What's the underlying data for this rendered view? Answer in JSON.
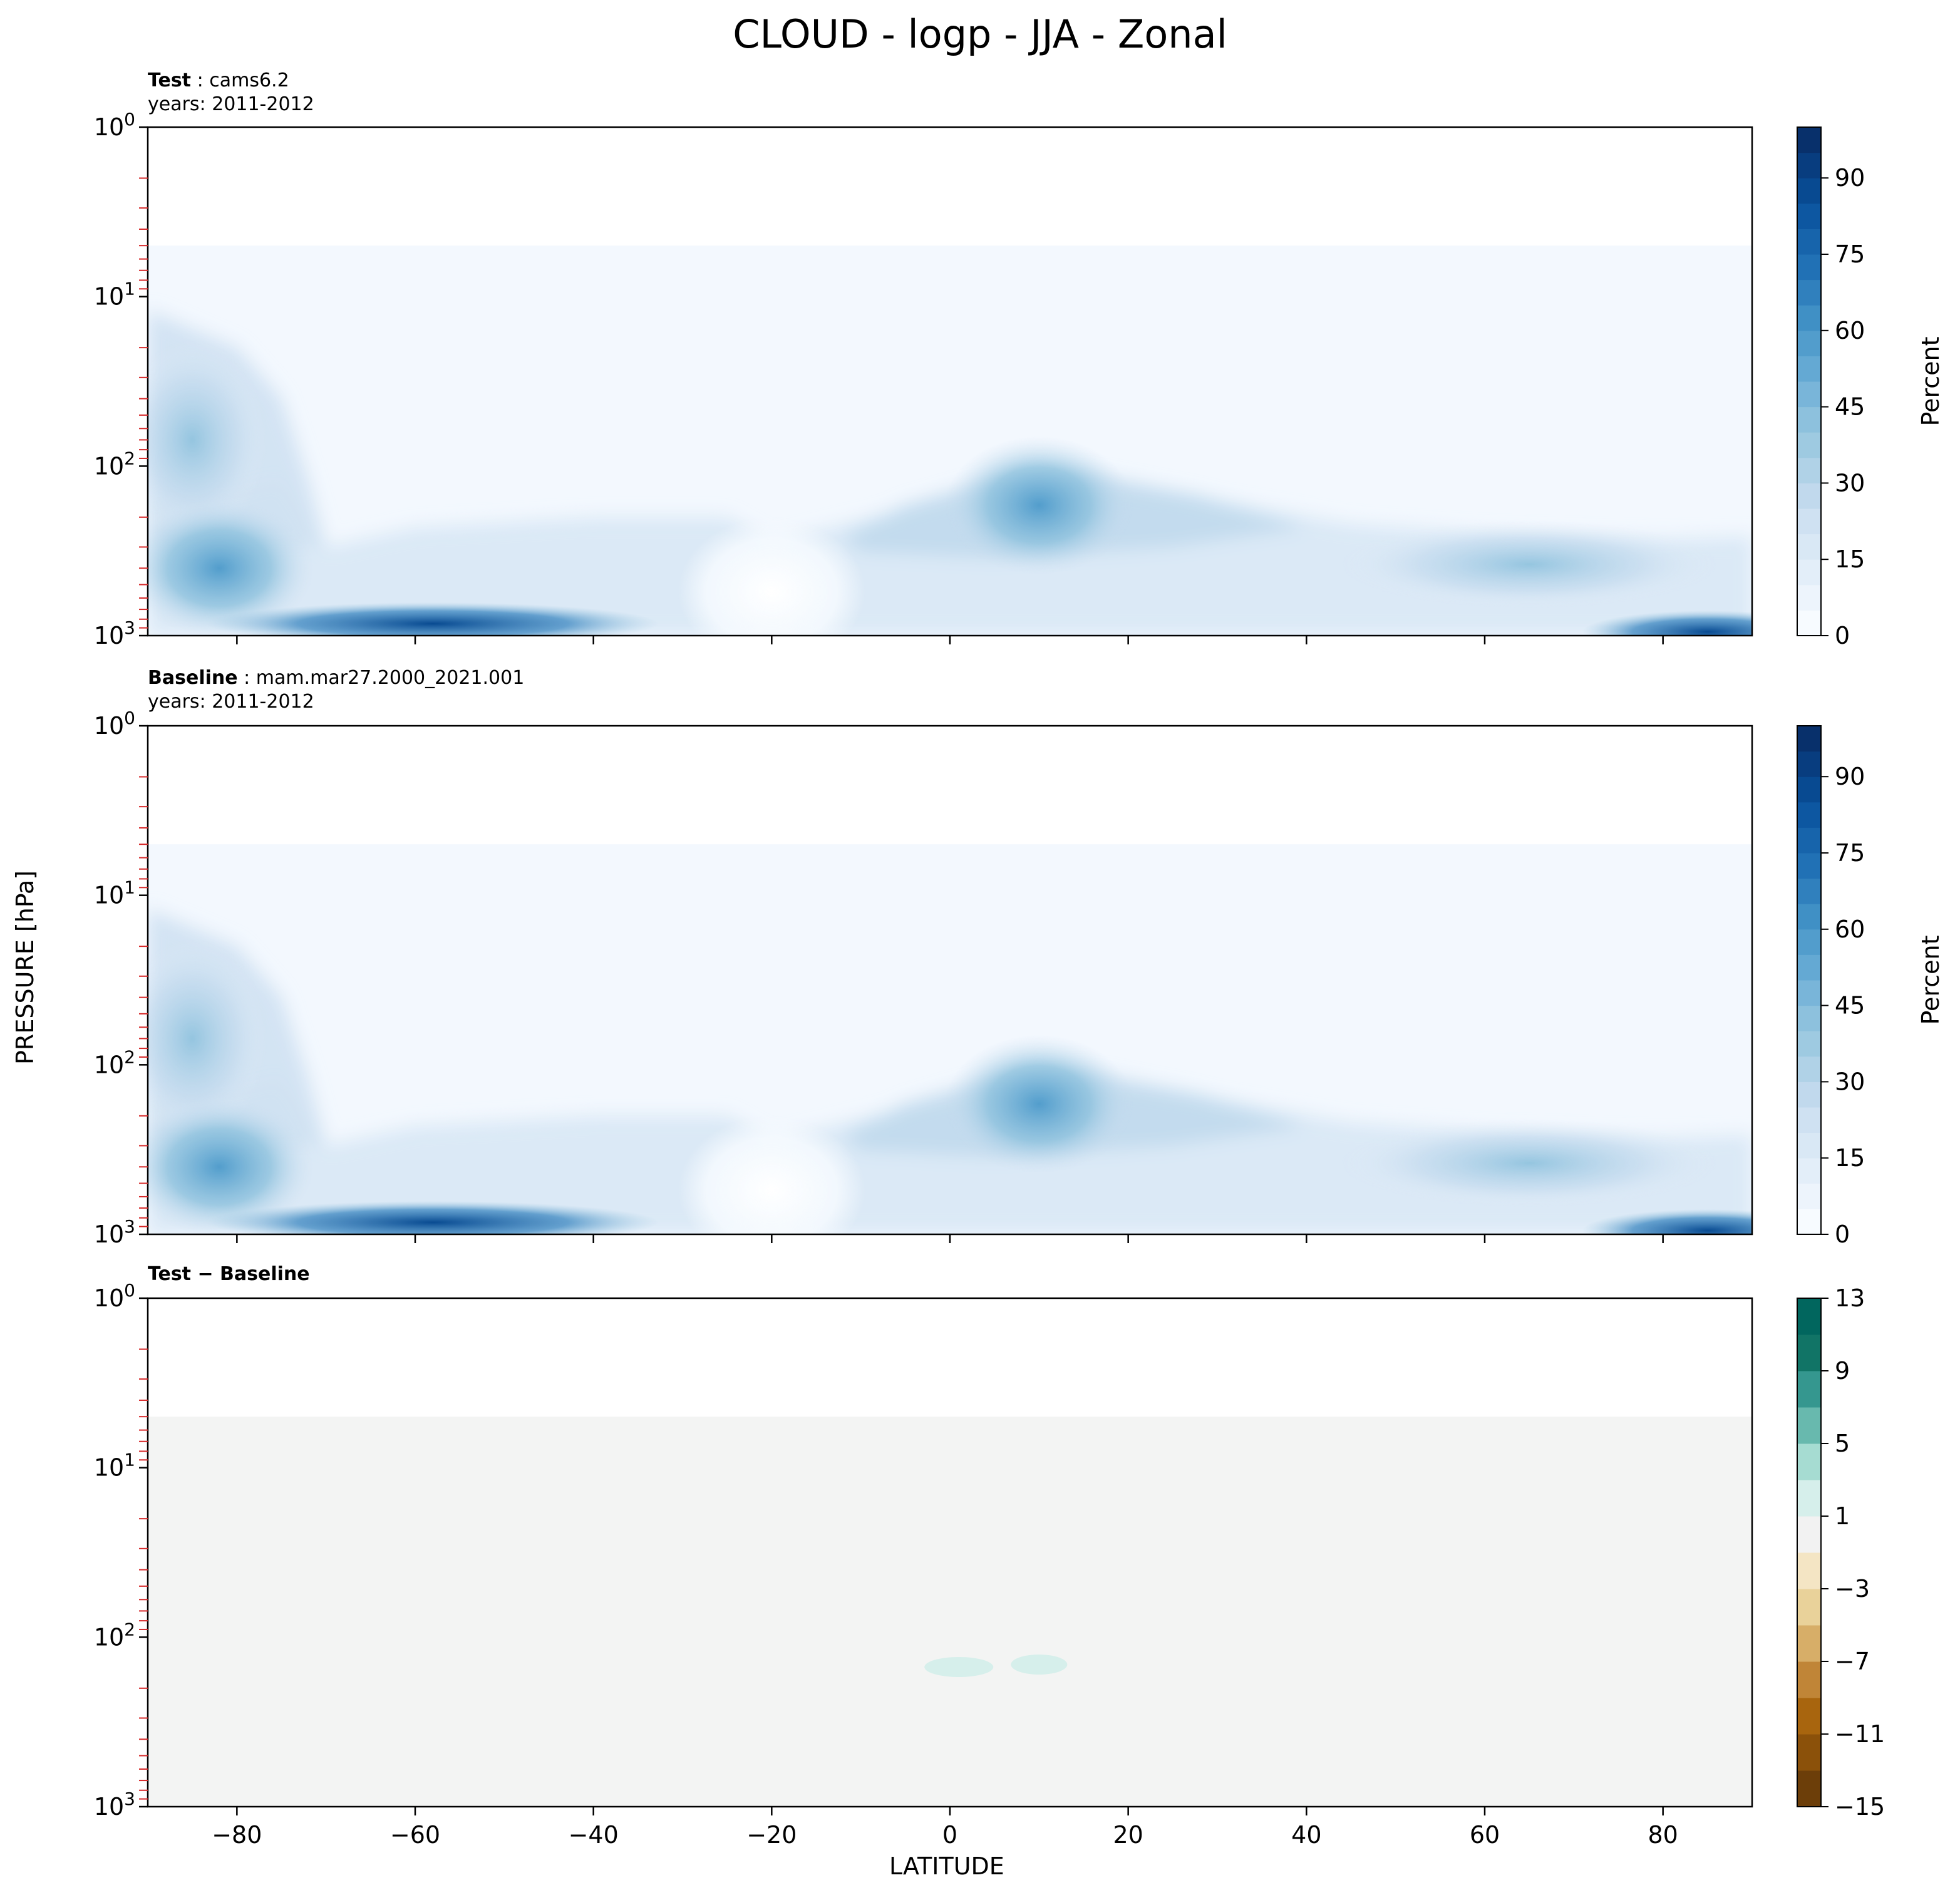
{
  "figure": {
    "title": "CLOUD - logp - JJA - Zonal",
    "xlabel": "LATITUDE",
    "ylabel": "PRESSURE [hPa]"
  },
  "panels": [
    {
      "label": "Test",
      "name": "cams6.2",
      "years": "years: 2011-2012",
      "colorbar_label": "Percent"
    },
    {
      "label": "Baseline",
      "name": "mam.mar27.2000_2021.001",
      "years": "years: 2011-2012",
      "colorbar_label": "Percent"
    },
    {
      "label": "Test − Baseline",
      "name": "",
      "years": "",
      "colorbar_label": ""
    }
  ],
  "colors": {
    "blues": [
      "#f7fbff",
      "#edf4fc",
      "#e3eef9",
      "#d9e8f5",
      "#cfe1f2",
      "#c1d9ed",
      "#b0d2e7",
      "#9ecae1",
      "#8dc1dd",
      "#79b5d9",
      "#64a9d3",
      "#529dcc",
      "#4090c5",
      "#3080bd",
      "#2171b5",
      "#1764ab",
      "#0d57a1",
      "#084a91",
      "#083d7f",
      "#08306b"
    ],
    "diff": [
      "#6c3e09",
      "#8b510a",
      "#a8650e",
      "#c08537",
      "#d7ae68",
      "#e9d29a",
      "#f4e5c4",
      "#f2f2f2",
      "#d6efeb",
      "#a6dcd2",
      "#68b9ae",
      "#35978f",
      "#117466",
      "#01665e"
    ]
  },
  "chart_data": [
    {
      "type": "heatmap",
      "title": "cams6.2",
      "xlabel": "",
      "ylabel": "PRESSURE [hPa]",
      "x_range": [
        -90,
        90
      ],
      "y_range": [
        1,
        1000
      ],
      "y_scale": "log",
      "y_inverted": true,
      "x_ticks": [
        -80,
        -60,
        -40,
        -20,
        0,
        20,
        40,
        60,
        80
      ],
      "y_ticks": [
        "10^0",
        "10^1",
        "10^2",
        "10^3"
      ],
      "colorbar": {
        "label": "Percent",
        "range": [
          0,
          100
        ],
        "ticks": [
          0,
          15,
          30,
          45,
          60,
          75,
          90
        ]
      },
      "features": [
        {
          "lat": -85,
          "p": 70,
          "value": 40
        },
        {
          "lat": -82,
          "p": 400,
          "value": 50
        },
        {
          "lat": -58,
          "p": 850,
          "value": 85
        },
        {
          "lat": -20,
          "p": 550,
          "value": 2
        },
        {
          "lat": 10,
          "p": 170,
          "value": 50
        },
        {
          "lat": 65,
          "p": 380,
          "value": 40
        },
        {
          "lat": 85,
          "p": 950,
          "value": 80
        }
      ]
    },
    {
      "type": "heatmap",
      "title": "mam.mar27.2000_2021.001",
      "xlabel": "",
      "ylabel": "PRESSURE [hPa]",
      "x_range": [
        -90,
        90
      ],
      "y_range": [
        1,
        1000
      ],
      "y_scale": "log",
      "y_inverted": true,
      "x_ticks": [
        -80,
        -60,
        -40,
        -20,
        0,
        20,
        40,
        60,
        80
      ],
      "y_ticks": [
        "10^0",
        "10^1",
        "10^2",
        "10^3"
      ],
      "colorbar": {
        "label": "Percent",
        "range": [
          0,
          100
        ],
        "ticks": [
          0,
          15,
          30,
          45,
          60,
          75,
          90
        ]
      },
      "features": [
        {
          "lat": -85,
          "p": 70,
          "value": 40
        },
        {
          "lat": -82,
          "p": 400,
          "value": 50
        },
        {
          "lat": -58,
          "p": 850,
          "value": 85
        },
        {
          "lat": -20,
          "p": 550,
          "value": 2
        },
        {
          "lat": 10,
          "p": 170,
          "value": 48
        },
        {
          "lat": 65,
          "p": 380,
          "value": 40
        },
        {
          "lat": 85,
          "p": 950,
          "value": 80
        }
      ]
    },
    {
      "type": "heatmap",
      "title": "Test − Baseline",
      "xlabel": "LATITUDE",
      "ylabel": "PRESSURE [hPa]",
      "x_range": [
        -90,
        90
      ],
      "y_range": [
        1,
        1000
      ],
      "y_scale": "log",
      "y_inverted": true,
      "x_ticks": [
        -80,
        -60,
        -40,
        -20,
        0,
        20,
        40,
        60,
        80
      ],
      "y_ticks": [
        "10^0",
        "10^1",
        "10^2",
        "10^3"
      ],
      "colorbar": {
        "label": "",
        "range": [
          -15,
          13
        ],
        "ticks": [
          -15,
          -11,
          -7,
          -3,
          1,
          5,
          9,
          13
        ]
      },
      "features": [
        {
          "lat": 1,
          "p": 150,
          "value": 2
        },
        {
          "lat": 10,
          "p": 145,
          "value": 2
        }
      ]
    }
  ]
}
